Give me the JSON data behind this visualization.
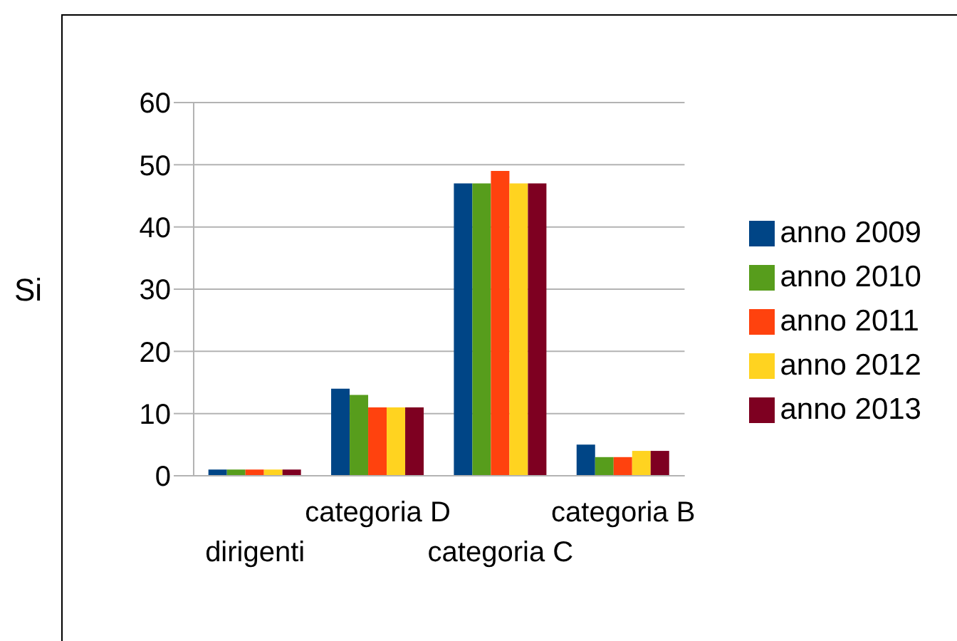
{
  "chart_data": {
    "type": "bar",
    "ylabel": "Si",
    "categories": [
      "dirigenti",
      "categoria D",
      "categoria C",
      "categoria B"
    ],
    "series": [
      {
        "name": "anno 2009",
        "color": "#004586",
        "values": [
          1,
          14,
          47,
          5
        ]
      },
      {
        "name": "anno 2010",
        "color": "#579d1c",
        "values": [
          1,
          13,
          47,
          3
        ]
      },
      {
        "name": "anno 2011",
        "color": "#ff420e",
        "values": [
          1,
          11,
          49,
          3
        ]
      },
      {
        "name": "anno 2012",
        "color": "#ffd320",
        "values": [
          1,
          11,
          47,
          4
        ]
      },
      {
        "name": "anno 2013",
        "color": "#7e0021",
        "values": [
          1,
          11,
          47,
          4
        ]
      }
    ],
    "ylim": [
      0,
      60
    ],
    "yticks": [
      0,
      10,
      20,
      30,
      40,
      50,
      60
    ],
    "grid": "y",
    "legend": "right"
  }
}
